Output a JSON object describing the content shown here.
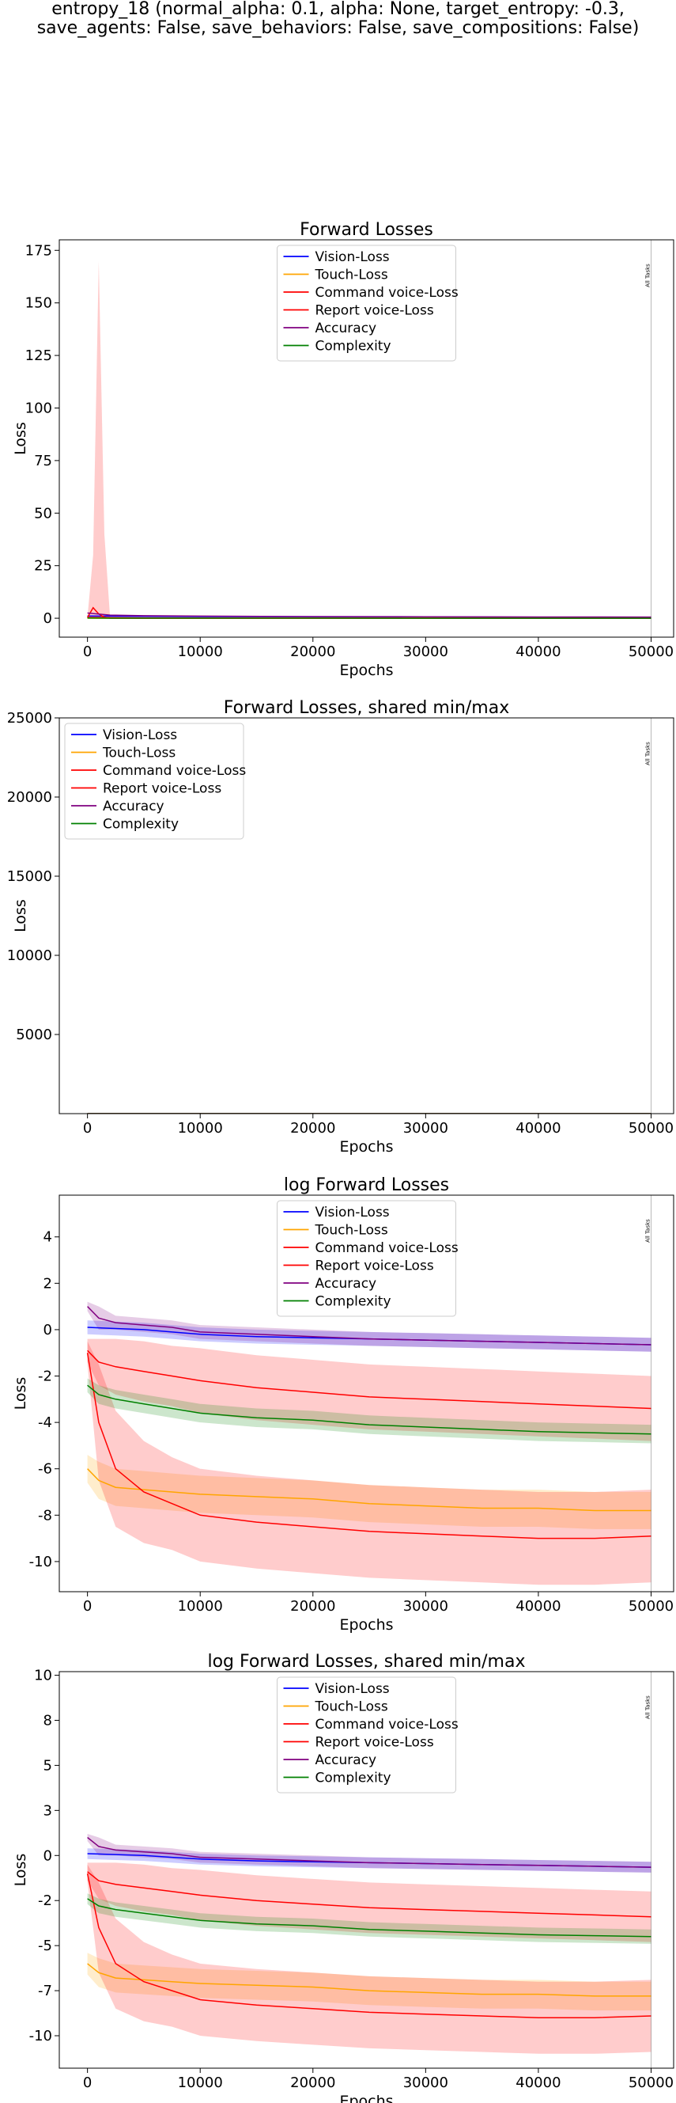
{
  "suptitle": {
    "line1": "entropy_18 (normal_alpha: 0.1, alpha: None, target_entropy: -0.3,",
    "line2": "save_agents: False, save_behaviors: False, save_compositions: False)"
  },
  "colors": {
    "Vision-Loss": "#0000ff",
    "Touch-Loss": "#ffa500",
    "Command voice-Loss": "#ff0000",
    "Report voice-Loss": "#ff0000",
    "Accuracy": "#800080",
    "Complexity": "#008000"
  },
  "chart_data": [
    {
      "type": "line",
      "title": "Forward Losses",
      "xlabel": "Epochs",
      "ylabel": "Loss",
      "xlim": [
        -2500,
        52000
      ],
      "ylim": [
        -9,
        180
      ],
      "xticks": [
        0,
        10000,
        20000,
        30000,
        40000,
        50000
      ],
      "yticks": [
        0,
        25,
        50,
        75,
        100,
        125,
        150,
        175
      ],
      "legend_loc": "upper center",
      "vline": {
        "x": 50000,
        "label": "All Tasks"
      },
      "series": [
        {
          "name": "Vision-Loss",
          "x": [
            0,
            2000,
            5000,
            10000,
            20000,
            30000,
            40000,
            50000
          ],
          "y": [
            1.1,
            1.0,
            0.9,
            0.8,
            0.7,
            0.6,
            0.5,
            0.45
          ],
          "band": [
            0.3,
            0.3,
            0.3,
            0.3,
            0.3,
            0.3,
            0.3,
            0.3
          ]
        },
        {
          "name": "Touch-Loss",
          "x": [
            0,
            2000,
            5000,
            10000,
            20000,
            30000,
            40000,
            50000
          ],
          "y": [
            0.0,
            0.0,
            0.0,
            0.0,
            0.0,
            0.0,
            0.0,
            0.0
          ]
        },
        {
          "name": "Command voice-Loss",
          "x": [
            0,
            2000,
            5000,
            10000,
            20000,
            30000,
            40000,
            50000
          ],
          "y": [
            0.4,
            0.3,
            0.2,
            0.1,
            0.05,
            0.04,
            0.03,
            0.03
          ]
        },
        {
          "name": "Report voice-Loss",
          "x": [
            0,
            500,
            1000,
            1500,
            2000,
            5000,
            10000,
            20000,
            30000,
            40000,
            50000
          ],
          "y": [
            0.3,
            5,
            2,
            0.5,
            0.02,
            0.01,
            0.0,
            0.0,
            0.0,
            0.0,
            0.0
          ],
          "band_lo": [
            0,
            0,
            0,
            0,
            0,
            0,
            0,
            0,
            0,
            0,
            0
          ],
          "band_hi": [
            0.5,
            30,
            170,
            40,
            0.5,
            0.1,
            0.05,
            0.02,
            0.02,
            0.02,
            0.02
          ]
        },
        {
          "name": "Accuracy",
          "x": [
            0,
            2000,
            5000,
            10000,
            20000,
            30000,
            40000,
            50000
          ],
          "y": [
            2.5,
            1.5,
            1.2,
            1.0,
            0.8,
            0.7,
            0.6,
            0.55
          ]
        },
        {
          "name": "Complexity",
          "x": [
            0,
            2000,
            5000,
            10000,
            20000,
            30000,
            40000,
            50000
          ],
          "y": [
            0.1,
            0.05,
            0.03,
            0.02,
            0.02,
            0.015,
            0.012,
            0.012
          ]
        }
      ]
    },
    {
      "type": "line",
      "title": "Forward Losses, shared min/max",
      "xlabel": "Epochs",
      "ylabel": "Loss",
      "xlim": [
        -2500,
        52000
      ],
      "ylim": [
        0,
        25000
      ],
      "xticks": [
        0,
        10000,
        20000,
        30000,
        40000,
        50000
      ],
      "yticks": [
        5000,
        10000,
        15000,
        20000,
        25000
      ],
      "legend_loc": "upper left",
      "vline": {
        "x": 50000,
        "label": "All Tasks"
      },
      "series": [
        {
          "name": "Vision-Loss",
          "x": [
            0,
            10000,
            20000,
            30000,
            40000,
            50000
          ],
          "y": [
            1,
            0.8,
            0.7,
            0.6,
            0.5,
            0.45
          ]
        },
        {
          "name": "Touch-Loss",
          "x": [
            0,
            10000,
            20000,
            30000,
            40000,
            50000
          ],
          "y": [
            0,
            0,
            0,
            0,
            0,
            0
          ]
        },
        {
          "name": "Command voice-Loss",
          "x": [
            0,
            10000,
            20000,
            30000,
            40000,
            50000
          ],
          "y": [
            0.4,
            0.1,
            0.05,
            0.04,
            0.03,
            0.03
          ]
        },
        {
          "name": "Report voice-Loss",
          "x": [
            0,
            10000,
            20000,
            30000,
            40000,
            50000
          ],
          "y": [
            0.3,
            0,
            0,
            0,
            0,
            0
          ]
        },
        {
          "name": "Accuracy",
          "x": [
            0,
            10000,
            20000,
            30000,
            40000,
            50000
          ],
          "y": [
            2.5,
            1.0,
            0.8,
            0.7,
            0.6,
            0.55
          ]
        },
        {
          "name": "Complexity",
          "x": [
            0,
            10000,
            20000,
            30000,
            40000,
            50000
          ],
          "y": [
            0.1,
            0.02,
            0.02,
            0.015,
            0.012,
            0.012
          ]
        }
      ]
    },
    {
      "type": "line",
      "title": "log Forward Losses",
      "xlabel": "Epochs",
      "ylabel": "Loss",
      "xlim": [
        -2500,
        52000
      ],
      "ylim": [
        -11.3,
        5.8
      ],
      "xticks": [
        0,
        10000,
        20000,
        30000,
        40000,
        50000
      ],
      "yticks": [
        -10,
        -8,
        -6,
        -4,
        -2,
        0,
        2,
        4
      ],
      "legend_loc": "upper center",
      "vline": {
        "x": 50000,
        "label": "All Tasks"
      },
      "series": [
        {
          "name": "Vision-Loss",
          "x": [
            0,
            2500,
            5000,
            7500,
            10000,
            15000,
            20000,
            25000,
            30000,
            35000,
            40000,
            45000,
            50000
          ],
          "y": [
            0.1,
            0.05,
            0.0,
            -0.1,
            -0.2,
            -0.3,
            -0.35,
            -0.4,
            -0.45,
            -0.5,
            -0.55,
            -0.6,
            -0.65
          ],
          "band": [
            0.3,
            0.3,
            0.3,
            0.3,
            0.3,
            0.3,
            0.3,
            0.3,
            0.3,
            0.3,
            0.3,
            0.3,
            0.3
          ]
        },
        {
          "name": "Touch-Loss",
          "x": [
            0,
            1000,
            2500,
            5000,
            7500,
            10000,
            15000,
            20000,
            25000,
            30000,
            35000,
            40000,
            45000,
            50000
          ],
          "y": [
            -6.0,
            -6.5,
            -6.8,
            -6.9,
            -7.0,
            -7.1,
            -7.2,
            -7.3,
            -7.5,
            -7.6,
            -7.7,
            -7.7,
            -7.8,
            -7.8
          ],
          "band": [
            0.6,
            0.8,
            0.8,
            0.8,
            0.8,
            0.8,
            0.8,
            0.8,
            0.8,
            0.8,
            0.8,
            0.8,
            0.8,
            0.8
          ]
        },
        {
          "name": "Command voice-Loss",
          "x": [
            0,
            1000,
            2500,
            5000,
            7500,
            10000,
            15000,
            20000,
            25000,
            30000,
            35000,
            40000,
            45000,
            50000
          ],
          "y": [
            -0.9,
            -1.4,
            -1.6,
            -1.8,
            -2.0,
            -2.2,
            -2.5,
            -2.7,
            -2.9,
            -3.0,
            -3.1,
            -3.2,
            -3.3,
            -3.4
          ],
          "band": [
            0.5,
            1.0,
            1.2,
            1.3,
            1.3,
            1.4,
            1.4,
            1.4,
            1.4,
            1.4,
            1.4,
            1.4,
            1.4,
            1.4
          ]
        },
        {
          "name": "Report voice-Loss",
          "x": [
            0,
            1000,
            2500,
            5000,
            7500,
            10000,
            15000,
            20000,
            25000,
            30000,
            35000,
            40000,
            45000,
            50000
          ],
          "y": [
            -1.0,
            -4.0,
            -6.0,
            -7.0,
            -7.5,
            -8.0,
            -8.3,
            -8.5,
            -8.7,
            -8.8,
            -8.9,
            -9.0,
            -9.0,
            -8.9
          ],
          "band": [
            0.5,
            2.5,
            2.5,
            2.2,
            2.0,
            2.0,
            2.0,
            2.0,
            2.0,
            2.0,
            2.0,
            2.0,
            2.0,
            2.0
          ]
        },
        {
          "name": "Accuracy",
          "x": [
            0,
            1000,
            2500,
            5000,
            7500,
            10000,
            15000,
            20000,
            25000,
            30000,
            35000,
            40000,
            45000,
            50000
          ],
          "y": [
            1.0,
            0.5,
            0.3,
            0.2,
            0.1,
            -0.1,
            -0.2,
            -0.3,
            -0.4,
            -0.45,
            -0.5,
            -0.55,
            -0.6,
            -0.65
          ],
          "band": [
            0.2,
            0.5,
            0.3,
            0.3,
            0.3,
            0.3,
            0.3,
            0.3,
            0.3,
            0.3,
            0.3,
            0.3,
            0.3,
            0.3
          ]
        },
        {
          "name": "Complexity",
          "x": [
            0,
            1000,
            2500,
            5000,
            7500,
            10000,
            15000,
            20000,
            25000,
            30000,
            35000,
            40000,
            45000,
            50000
          ],
          "y": [
            -2.4,
            -2.8,
            -3.0,
            -3.2,
            -3.4,
            -3.6,
            -3.8,
            -3.9,
            -4.1,
            -4.2,
            -4.3,
            -4.4,
            -4.45,
            -4.5
          ],
          "band": [
            0.3,
            0.4,
            0.4,
            0.4,
            0.4,
            0.4,
            0.4,
            0.4,
            0.4,
            0.4,
            0.4,
            0.4,
            0.4,
            0.4
          ]
        }
      ]
    },
    {
      "type": "line",
      "title": "log Forward Losses, shared min/max",
      "xlabel": "Epochs",
      "ylabel": "Loss",
      "xlim": [
        -2500,
        52000
      ],
      "ylim": [
        -11.8,
        10.2
      ],
      "xticks": [
        0,
        10000,
        20000,
        30000,
        40000,
        50000
      ],
      "yticks": [
        -10.0,
        -7.5,
        -5.0,
        -2.5,
        0.0,
        2.5,
        5.0,
        7.5,
        10.0
      ],
      "legend_loc": "upper center",
      "vline": {
        "x": 50000,
        "label": "All Tasks"
      },
      "series": [
        {
          "name": "Vision-Loss",
          "x": [
            0,
            2500,
            5000,
            7500,
            10000,
            15000,
            20000,
            25000,
            30000,
            35000,
            40000,
            45000,
            50000
          ],
          "y": [
            0.1,
            0.05,
            0.0,
            -0.1,
            -0.2,
            -0.3,
            -0.35,
            -0.4,
            -0.45,
            -0.5,
            -0.55,
            -0.6,
            -0.65
          ],
          "band": [
            0.3,
            0.3,
            0.3,
            0.3,
            0.3,
            0.3,
            0.3,
            0.3,
            0.3,
            0.3,
            0.3,
            0.3,
            0.3
          ]
        },
        {
          "name": "Touch-Loss",
          "x": [
            0,
            1000,
            2500,
            5000,
            7500,
            10000,
            15000,
            20000,
            25000,
            30000,
            35000,
            40000,
            45000,
            50000
          ],
          "y": [
            -6.0,
            -6.5,
            -6.8,
            -6.9,
            -7.0,
            -7.1,
            -7.2,
            -7.3,
            -7.5,
            -7.6,
            -7.7,
            -7.7,
            -7.8,
            -7.8
          ],
          "band": [
            0.6,
            0.8,
            0.8,
            0.8,
            0.8,
            0.8,
            0.8,
            0.8,
            0.8,
            0.8,
            0.8,
            0.8,
            0.8,
            0.8
          ]
        },
        {
          "name": "Command voice-Loss",
          "x": [
            0,
            1000,
            2500,
            5000,
            7500,
            10000,
            15000,
            20000,
            25000,
            30000,
            35000,
            40000,
            45000,
            50000
          ],
          "y": [
            -0.9,
            -1.4,
            -1.6,
            -1.8,
            -2.0,
            -2.2,
            -2.5,
            -2.7,
            -2.9,
            -3.0,
            -3.1,
            -3.2,
            -3.3,
            -3.4
          ],
          "band": [
            0.5,
            1.0,
            1.2,
            1.3,
            1.3,
            1.4,
            1.4,
            1.4,
            1.4,
            1.4,
            1.4,
            1.4,
            1.4,
            1.4
          ]
        },
        {
          "name": "Report voice-Loss",
          "x": [
            0,
            1000,
            2500,
            5000,
            7500,
            10000,
            15000,
            20000,
            25000,
            30000,
            35000,
            40000,
            45000,
            50000
          ],
          "y": [
            -1.0,
            -4.0,
            -6.0,
            -7.0,
            -7.5,
            -8.0,
            -8.3,
            -8.5,
            -8.7,
            -8.8,
            -8.9,
            -9.0,
            -9.0,
            -8.9
          ],
          "band": [
            0.5,
            2.5,
            2.5,
            2.2,
            2.0,
            2.0,
            2.0,
            2.0,
            2.0,
            2.0,
            2.0,
            2.0,
            2.0,
            2.0
          ]
        },
        {
          "name": "Accuracy",
          "x": [
            0,
            1000,
            2500,
            5000,
            7500,
            10000,
            15000,
            20000,
            25000,
            30000,
            35000,
            40000,
            45000,
            50000
          ],
          "y": [
            1.0,
            0.5,
            0.3,
            0.2,
            0.1,
            -0.1,
            -0.2,
            -0.3,
            -0.4,
            -0.45,
            -0.5,
            -0.55,
            -0.6,
            -0.65
          ],
          "band": [
            0.2,
            0.5,
            0.3,
            0.3,
            0.3,
            0.3,
            0.3,
            0.3,
            0.3,
            0.3,
            0.3,
            0.3,
            0.3,
            0.3
          ]
        },
        {
          "name": "Complexity",
          "x": [
            0,
            1000,
            2500,
            5000,
            7500,
            10000,
            15000,
            20000,
            25000,
            30000,
            35000,
            40000,
            45000,
            50000
          ],
          "y": [
            -2.4,
            -2.8,
            -3.0,
            -3.2,
            -3.4,
            -3.6,
            -3.8,
            -3.9,
            -4.1,
            -4.2,
            -4.3,
            -4.4,
            -4.45,
            -4.5
          ],
          "band": [
            0.3,
            0.4,
            0.4,
            0.4,
            0.4,
            0.4,
            0.4,
            0.4,
            0.4,
            0.4,
            0.4,
            0.4,
            0.4,
            0.4
          ]
        }
      ]
    }
  ]
}
